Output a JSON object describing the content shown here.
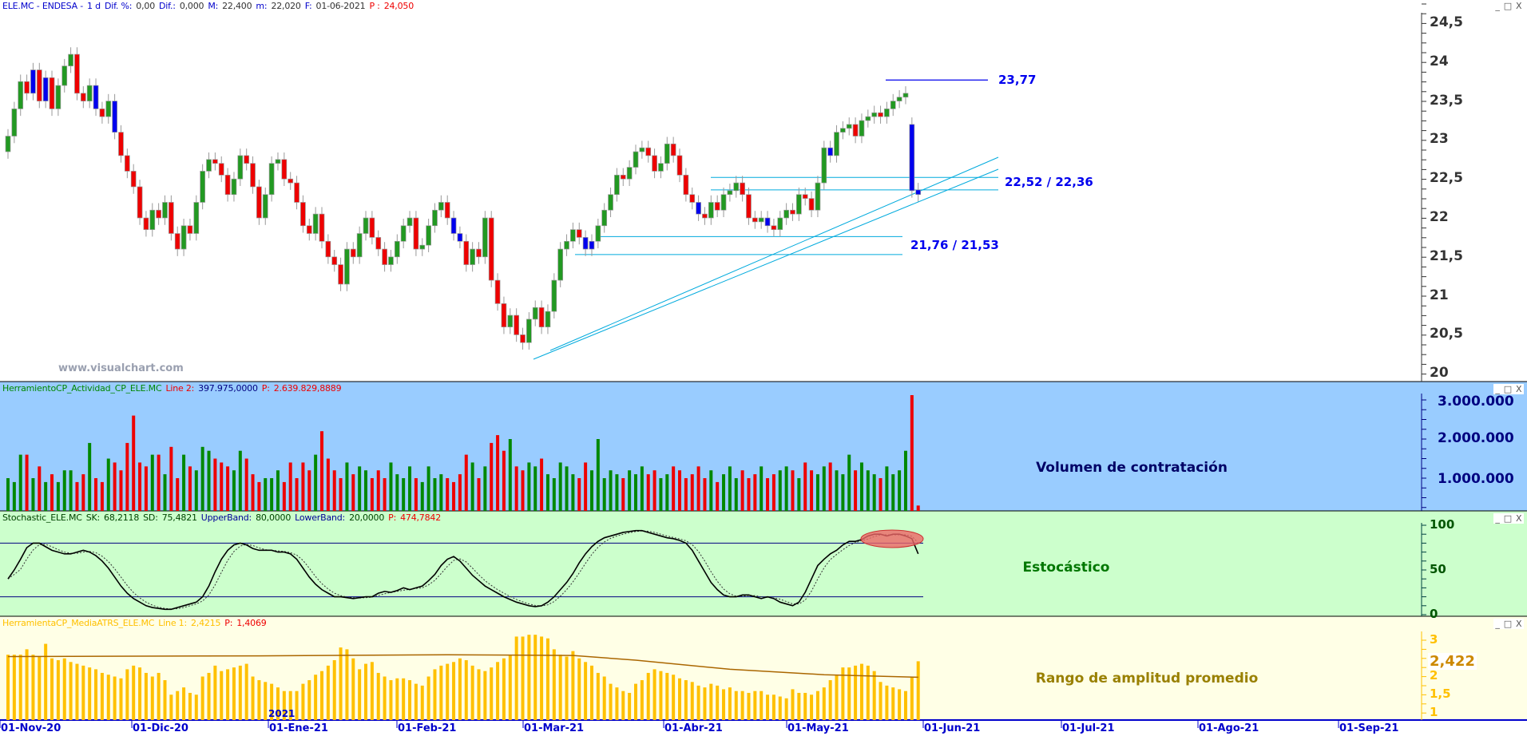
{
  "main": {
    "header": {
      "symbol": "ELE.MC - ENDESA -",
      "period": "1 d",
      "dif_pct_label": "Dif. %:",
      "dif_pct": "0,00",
      "dif_label": "Dif.:",
      "dif": "0,000",
      "max_label": "M:",
      "max": "22,400",
      "min_label": "m:",
      "min": "22,020",
      "date_label": "F:",
      "date": "01-06-2021",
      "p_label": "P :",
      "p": "24,050"
    },
    "axis_labels": [
      "24,5",
      "24",
      "23,5",
      "23",
      "22,5",
      "22",
      "21,5",
      "21",
      "20,5",
      "20"
    ],
    "annotations": {
      "resistance": "23,77",
      "zone_upper": "22,52 / 22,36",
      "zone_lower": "21,76 / 21,53"
    },
    "watermark": "www.visualchart.com",
    "colors": {
      "up": "#229922",
      "down": "#ee0000",
      "blue": "#0000ee",
      "lines": "#00aadd"
    }
  },
  "volume": {
    "header": {
      "name": "HerramientoCP_Actividad_CP_ELE.MC",
      "line_label": "Line 2:",
      "line": "397.975,0000",
      "p_label": "P:",
      "p": "2.639.829,8889"
    },
    "axis_labels": [
      "3.000.000",
      "2.000.000",
      "1.000.000"
    ],
    "panel_label": "Volumen de contratación",
    "bg": "#99ccff"
  },
  "stochastic": {
    "header": {
      "name": "Stochastic_ELE.MC",
      "sk_label": "SK:",
      "sk": "68,2118",
      "sd_label": "SD:",
      "sd": "75,4821",
      "upper_label": "UpperBand:",
      "upper": "80,0000",
      "lower_label": "LowerBand:",
      "lower": "20,0000",
      "p_label": "P:",
      "p": "474,7842"
    },
    "axis_labels": [
      "100",
      "50",
      "0"
    ],
    "panel_label": "Estocástico",
    "bg": "#ccffcc"
  },
  "atr": {
    "header": {
      "name": "HerramientaCP_MediaATRS_ELE.MC",
      "line_label": "Line 1:",
      "line": "2,4215",
      "p_label": "P:",
      "p": "1,4069"
    },
    "axis_labels": [
      "3",
      "2,5",
      "2",
      "1,5",
      "1"
    ],
    "last_value": "2,422",
    "panel_label": "Rango de amplitud promedio",
    "bg": "#ffffe6",
    "color": "#ffc000"
  },
  "xaxis": {
    "labels": [
      "01-Nov-20",
      "01-Dic-20",
      "01-Ene-21",
      "01-Feb-21",
      "01-Mar-21",
      "01-Abr-21",
      "01-May-21",
      "01-Jun-21",
      "01-Jul-21",
      "01-Ago-21",
      "01-Sep-21"
    ],
    "year_marker": "2021"
  },
  "window_buttons": {
    "minimize": "_",
    "maximize": "□",
    "close": "X"
  },
  "chart_data": [
    {
      "type": "candlestick",
      "title": "ELE.MC - ENDESA",
      "ylim": [
        20,
        24.5
      ],
      "open": [
        22.85,
        23.05,
        23.4,
        23.75,
        23.6,
        23.9,
        23.5,
        23.8,
        23.4,
        23.7,
        23.95,
        24.1,
        23.6,
        23.5,
        23.7,
        23.4,
        23.3,
        23.5,
        23.1,
        22.8,
        22.6,
        22.4,
        22.0,
        21.85,
        22.1,
        22.0,
        22.2,
        21.8,
        21.6,
        21.9,
        21.8,
        22.2,
        22.6,
        22.75,
        22.7,
        22.55,
        22.3,
        22.5,
        22.8,
        22.7,
        22.4,
        22.0,
        22.3,
        22.7,
        22.75,
        22.5,
        22.45,
        22.2,
        21.9,
        21.8,
        22.05,
        21.7,
        21.5,
        21.4,
        21.15,
        21.6,
        21.5,
        21.8,
        22.0,
        21.75,
        21.6,
        21.4,
        21.5,
        21.7,
        21.9,
        22.0,
        21.6,
        21.65,
        21.9,
        22.1,
        22.2,
        22.0,
        21.8,
        21.7,
        21.4,
        21.6,
        21.5,
        22.0,
        21.2,
        20.9,
        20.6,
        20.75,
        20.5,
        20.4,
        20.7,
        20.85,
        20.6,
        20.8,
        21.2,
        21.6,
        21.7,
        21.85,
        21.75,
        21.6,
        21.7,
        21.9,
        22.1,
        22.3,
        22.55,
        22.5,
        22.65,
        22.85,
        22.9,
        22.8,
        22.6,
        22.7,
        22.95,
        22.8,
        22.55,
        22.3,
        22.2,
        22.05,
        22.0,
        22.2,
        22.1,
        22.3,
        22.35,
        22.45,
        22.3,
        22.0,
        21.95,
        22.0,
        21.9,
        21.85,
        22.0,
        22.1,
        22.05,
        22.3,
        22.25,
        22.1,
        22.45,
        22.9,
        22.8,
        23.1,
        23.15,
        23.2,
        23.05,
        23.25,
        23.3,
        23.35,
        23.3,
        23.4,
        23.5,
        23.55,
        23.2,
        22.36
      ],
      "close": [
        23.05,
        23.4,
        23.75,
        23.6,
        23.9,
        23.5,
        23.8,
        23.4,
        23.7,
        23.95,
        24.1,
        23.6,
        23.5,
        23.7,
        23.4,
        23.3,
        23.5,
        23.1,
        22.8,
        22.6,
        22.4,
        22.0,
        21.85,
        22.1,
        22.0,
        22.2,
        21.8,
        21.6,
        21.9,
        21.8,
        22.2,
        22.6,
        22.75,
        22.7,
        22.55,
        22.3,
        22.5,
        22.8,
        22.7,
        22.4,
        22.0,
        22.3,
        22.7,
        22.75,
        22.5,
        22.45,
        22.2,
        21.9,
        21.8,
        22.05,
        21.7,
        21.5,
        21.4,
        21.15,
        21.6,
        21.5,
        21.8,
        22.0,
        21.75,
        21.6,
        21.4,
        21.5,
        21.7,
        21.9,
        22.0,
        21.6,
        21.65,
        21.9,
        22.1,
        22.2,
        22.0,
        21.8,
        21.7,
        21.4,
        21.6,
        21.5,
        22.0,
        21.2,
        20.9,
        20.6,
        20.75,
        20.5,
        20.4,
        20.7,
        20.85,
        20.6,
        20.8,
        21.2,
        21.6,
        21.7,
        21.85,
        21.75,
        21.6,
        21.7,
        21.9,
        22.1,
        22.3,
        22.55,
        22.5,
        22.65,
        22.85,
        22.9,
        22.8,
        22.6,
        22.7,
        22.95,
        22.8,
        22.55,
        22.3,
        22.2,
        22.05,
        22.0,
        22.2,
        22.1,
        22.3,
        22.35,
        22.45,
        22.3,
        22.0,
        21.95,
        22.0,
        21.9,
        21.85,
        22.0,
        22.1,
        22.05,
        22.3,
        22.25,
        22.1,
        22.45,
        22.9,
        22.8,
        23.1,
        23.15,
        23.2,
        23.05,
        23.25,
        23.3,
        23.35,
        23.3,
        23.4,
        23.5,
        23.55,
        23.6,
        22.35,
        22.3
      ],
      "blue_bars": [
        4,
        6,
        14,
        17,
        71,
        72,
        92,
        93,
        110,
        121,
        131,
        144,
        145
      ],
      "hlines": [
        {
          "value": 23.77
        },
        {
          "value": 22.52
        },
        {
          "value": 22.36
        },
        {
          "value": 21.76
        },
        {
          "value": 21.53
        }
      ]
    },
    {
      "type": "bar",
      "title": "Volumen de contratación",
      "ylim": [
        0,
        3200000
      ],
      "values": [
        1000000.0,
        900000.0,
        1600000.0,
        1600000.0,
        1000000.0,
        1300000.0,
        900000.0,
        1100000.0,
        900000.0,
        1200000.0,
        1200000.0,
        900000.0,
        1100000.0,
        1900000.0,
        1000000.0,
        900000.0,
        1500000.0,
        1400000.0,
        1200000.0,
        1900000.0,
        2600000.0,
        1400000.0,
        1300000.0,
        1600000.0,
        1600000.0,
        1100000.0,
        1800000.0,
        1000000.0,
        1600000.0,
        1300000.0,
        1200000.0,
        1800000.0,
        1700000.0,
        1500000.0,
        1400000.0,
        1300000.0,
        1200000.0,
        1700000.0,
        1500000.0,
        1100000.0,
        900000.0,
        1000000.0,
        1000000.0,
        1200000.0,
        900000.0,
        1400000.0,
        1000000.0,
        1400000.0,
        1200000.0,
        1600000.0,
        2200000.0,
        1500000.0,
        1200000.0,
        1000000.0,
        1400000.0,
        1100000.0,
        1300000.0,
        1200000.0,
        1000000.0,
        1200000.0,
        1000000.0,
        1400000.0,
        1100000.0,
        1000000.0,
        1300000.0,
        1000000.0,
        900000.0,
        1300000.0,
        1000000.0,
        1100000.0,
        1000000.0,
        900000.0,
        1100000.0,
        1600000.0,
        1400000.0,
        1000000.0,
        1300000.0,
        1900000.0,
        2100000.0,
        1700000.0,
        2000000.0,
        1300000.0,
        1200000.0,
        1400000.0,
        1300000.0,
        1500000.0,
        1100000.0,
        1000000.0,
        1400000.0,
        1300000.0,
        1100000.0,
        1000000.0,
        1400000.0,
        1200000.0,
        2000000.0,
        1000000.0,
        1200000.0,
        1100000.0,
        1000000.0,
        1200000.0,
        1100000.0,
        1300000.0,
        1100000.0,
        1200000.0,
        1000000.0,
        1100000.0,
        1300000.0,
        1200000.0,
        1000000.0,
        1100000.0,
        1300000.0,
        1000000.0,
        1200000.0,
        900000.0,
        1100000.0,
        1300000.0,
        1000000.0,
        1200000.0,
        1000000.0,
        1100000.0,
        1300000.0,
        1000000.0,
        1100000.0,
        1200000.0,
        1300000.0,
        1200000.0,
        1000000.0,
        1400000.0,
        1200000.0,
        1100000.0,
        1300000.0,
        1400000.0,
        1200000.0,
        1100000.0,
        1600000.0,
        1200000.0,
        1400000.0,
        1200000.0,
        1100000.0,
        1000000.0,
        1300000.0,
        1100000.0,
        1200000.0,
        1700000.0,
        3150000.0,
        300000.0
      ]
    },
    {
      "type": "line",
      "title": "Estocástico",
      "ylim": [
        0,
        100
      ],
      "bands": [
        80,
        20
      ],
      "sk": [
        40,
        50,
        62,
        75,
        80,
        80,
        76,
        72,
        70,
        68,
        68,
        70,
        72,
        70,
        66,
        60,
        52,
        42,
        32,
        24,
        18,
        14,
        10,
        8,
        7,
        6,
        6,
        8,
        10,
        12,
        14,
        20,
        32,
        48,
        62,
        72,
        78,
        80,
        78,
        74,
        72,
        72,
        72,
        70,
        70,
        68,
        62,
        52,
        42,
        34,
        28,
        24,
        20,
        20,
        19,
        18,
        19,
        20,
        20,
        24,
        26,
        25,
        27,
        30,
        28,
        30,
        32,
        38,
        45,
        55,
        62,
        65,
        60,
        52,
        44,
        38,
        32,
        28,
        24,
        20,
        17,
        14,
        12,
        10,
        9,
        10,
        14,
        20,
        28,
        36,
        46,
        58,
        68,
        76,
        82,
        86,
        88,
        90,
        92,
        93,
        94,
        94,
        92,
        90,
        88,
        86,
        85,
        83,
        80,
        72,
        60,
        48,
        36,
        28,
        22,
        20,
        20,
        22,
        22,
        20,
        18,
        20,
        18,
        14,
        12,
        10,
        14,
        25,
        40,
        55,
        62,
        68,
        72,
        78,
        82,
        82,
        84,
        88,
        90,
        90,
        88,
        90,
        90,
        88,
        85,
        68
      ]
    },
    {
      "type": "bar",
      "title": "Rango de amplitud promedio",
      "ylim": [
        0.8,
        3.3
      ],
      "values": [
        2.6,
        2.6,
        2.6,
        2.75,
        2.6,
        2.55,
        2.9,
        2.5,
        2.45,
        2.5,
        2.4,
        2.35,
        2.3,
        2.25,
        2.2,
        2.1,
        2.05,
        2.0,
        1.95,
        2.2,
        2.3,
        2.25,
        2.1,
        2.0,
        2.1,
        1.9,
        1.5,
        1.6,
        1.7,
        1.55,
        1.5,
        2.0,
        2.1,
        2.3,
        2.15,
        2.2,
        2.25,
        2.3,
        2.35,
        2.0,
        1.9,
        1.85,
        1.8,
        1.7,
        1.6,
        1.6,
        1.6,
        1.8,
        1.9,
        2.05,
        2.15,
        2.3,
        2.45,
        2.8,
        2.75,
        2.5,
        2.2,
        2.35,
        2.4,
        2.1,
        2.0,
        1.9,
        1.95,
        1.95,
        1.9,
        1.8,
        1.75,
        2.0,
        2.2,
        2.3,
        2.35,
        2.4,
        2.5,
        2.45,
        2.3,
        2.2,
        2.15,
        2.25,
        2.4,
        2.5,
        2.6,
        3.1,
        3.1,
        3.15,
        3.15,
        3.1,
        3.05,
        2.75,
        2.6,
        2.55,
        2.7,
        2.5,
        2.4,
        2.3,
        2.1,
        2.0,
        1.8,
        1.7,
        1.6,
        1.55,
        1.8,
        1.9,
        2.1,
        2.2,
        2.15,
        2.1,
        2.05,
        1.95,
        1.9,
        1.85,
        1.75,
        1.7,
        1.8,
        1.75,
        1.65,
        1.7,
        1.6,
        1.6,
        1.55,
        1.6,
        1.6,
        1.5,
        1.5,
        1.45,
        1.4,
        1.65,
        1.55,
        1.55,
        1.5,
        1.6,
        1.7,
        1.9,
        2.05,
        2.25,
        2.25,
        2.3,
        2.35,
        2.3,
        2.15,
        1.85,
        1.75,
        1.7,
        1.65,
        1.6,
        2.0,
        2.42
      ],
      "average_line": [
        [
          0,
          2.55
        ],
        [
          40,
          2.57
        ],
        [
          70,
          2.6
        ],
        [
          90,
          2.58
        ],
        [
          100,
          2.45
        ],
        [
          115,
          2.2
        ],
        [
          130,
          2.05
        ],
        [
          145,
          1.98
        ]
      ]
    }
  ]
}
